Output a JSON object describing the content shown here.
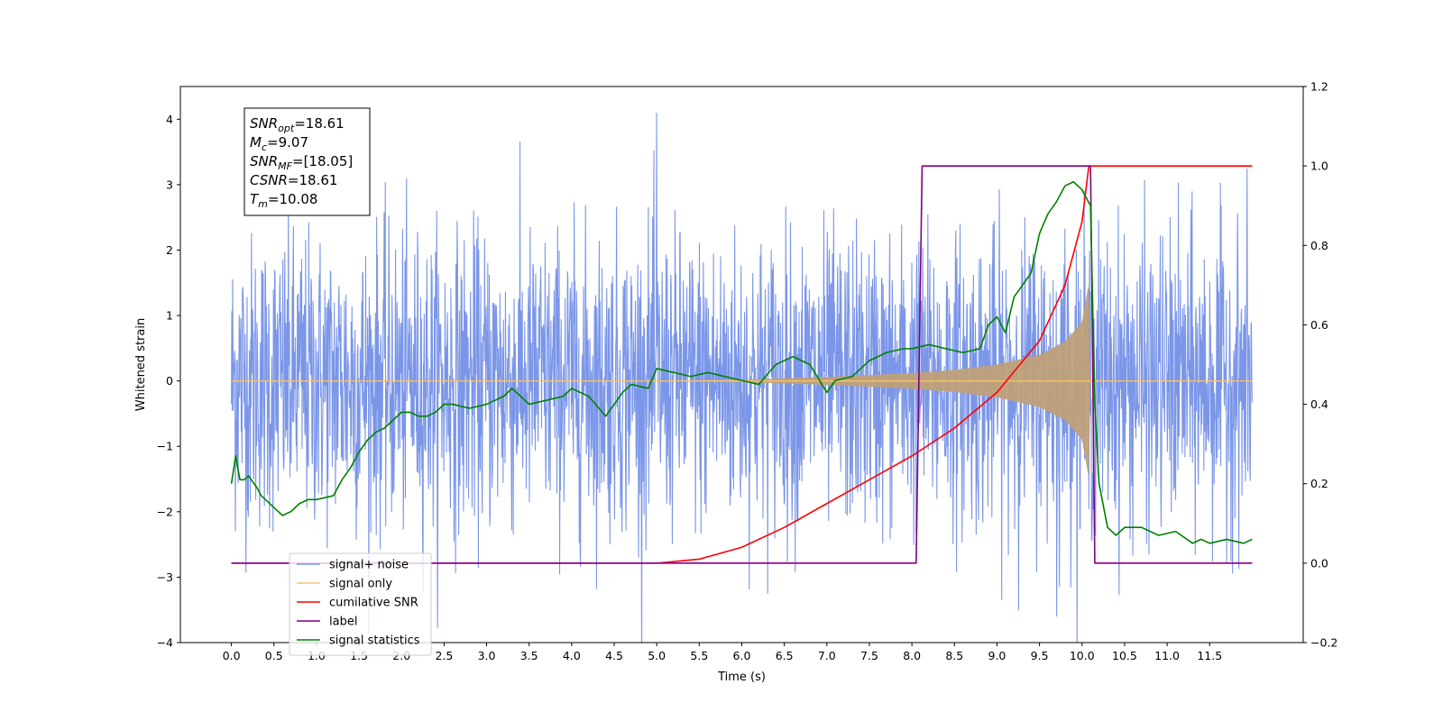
{
  "chart_data": {
    "type": "line",
    "xlabel": "Time (s)",
    "ylabel_left": "Whitened strain",
    "ylabel_right": "",
    "xlim": [
      -0.6,
      12.6
    ],
    "ylim_left": [
      -4,
      4.5
    ],
    "ylim_right": [
      -0.2,
      1.2
    ],
    "x_ticks": [
      0.0,
      0.5,
      1.0,
      1.5,
      2.0,
      2.5,
      3.0,
      3.5,
      4.0,
      4.5,
      5.0,
      5.5,
      6.0,
      6.5,
      7.0,
      7.5,
      8.0,
      8.5,
      9.0,
      9.5,
      10.0,
      10.5,
      11.0,
      11.5
    ],
    "x_tick_labels": [
      "0.0",
      "0.5",
      "1.0",
      "1.5",
      "2.0",
      "2.5",
      "3.0",
      "3.5",
      "4.0",
      "4.5",
      "5.0",
      "5.5",
      "6.0",
      "6.5",
      "7.0",
      "7.5",
      "8.0",
      "8.5",
      "9.0",
      "9.5",
      "10.0",
      "10.5",
      "11.0",
      "11.5"
    ],
    "y_ticks_left": [
      -4,
      -3,
      -2,
      -1,
      0,
      1,
      2,
      3,
      4
    ],
    "y_tick_labels_left": [
      "−4",
      "−3",
      "−2",
      "−1",
      "0",
      "1",
      "2",
      "3",
      "4"
    ],
    "y_ticks_right": [
      -0.2,
      0.0,
      0.2,
      0.4,
      0.6,
      0.8,
      1.0,
      1.2
    ],
    "y_tick_labels_right": [
      "−0.2",
      "0.0",
      "0.2",
      "0.4",
      "0.6",
      "0.8",
      "1.0",
      "1.2"
    ],
    "grid": false,
    "legend_position": "lower-left",
    "info_box": {
      "position": "top-left",
      "lines": [
        {
          "base": "SNR",
          "sub": "opt",
          "value": "=18.61"
        },
        {
          "base": "M",
          "sub": "c",
          "value": "=9.07"
        },
        {
          "base": "SNR",
          "sub": "MF",
          "value": "=[18.05]"
        },
        {
          "base": "CSNR",
          "sub": "",
          "value": "=18.61"
        },
        {
          "base": "T",
          "sub": "m",
          "value": "=10.08"
        }
      ]
    },
    "series": [
      {
        "name": "signal+ noise",
        "axis": "left",
        "color": "#7b96e8",
        "kind": "noise",
        "t_start": 0.0,
        "t_end": 12.0,
        "typical_range": [
          -1.8,
          1.8
        ],
        "peak_max": 4.1,
        "peak_min": -3.6
      },
      {
        "name": "signal only",
        "axis": "left",
        "color": "#f5c26b",
        "fill_color": "#bfa07a",
        "kind": "chirp",
        "t_start": 0.0,
        "t_merger": 10.08,
        "t_end": 12.0,
        "envelope_t": [
          0.0,
          6.0,
          7.0,
          8.0,
          8.5,
          9.0,
          9.5,
          9.8,
          10.0,
          10.08,
          10.1
        ],
        "envelope_amp": [
          0.0,
          0.02,
          0.06,
          0.12,
          0.17,
          0.25,
          0.4,
          0.6,
          0.9,
          1.5,
          0.0
        ]
      },
      {
        "name": "cumilative SNR",
        "axis": "right",
        "color": "#ff0000",
        "x": [
          0.0,
          5.0,
          5.5,
          6.0,
          6.5,
          7.0,
          7.5,
          8.0,
          8.5,
          9.0,
          9.5,
          9.8,
          10.0,
          10.08,
          10.1,
          12.0
        ],
        "y": [
          0.0,
          0.0,
          0.01,
          0.04,
          0.09,
          0.15,
          0.21,
          0.27,
          0.34,
          0.43,
          0.56,
          0.7,
          0.86,
          1.0,
          1.0,
          1.0
        ]
      },
      {
        "name": "label",
        "axis": "right",
        "color": "#800080",
        "x": [
          0.0,
          8.05,
          8.12,
          10.1,
          10.15,
          12.0
        ],
        "y": [
          0.0,
          0.0,
          1.0,
          1.0,
          0.0,
          0.0
        ]
      },
      {
        "name": "signal statistics",
        "axis": "right",
        "color": "#008000",
        "x": [
          0.0,
          0.05,
          0.1,
          0.15,
          0.2,
          0.3,
          0.35,
          0.4,
          0.5,
          0.6,
          0.7,
          0.8,
          0.9,
          1.0,
          1.2,
          1.3,
          1.4,
          1.5,
          1.6,
          1.7,
          1.8,
          1.9,
          2.0,
          2.1,
          2.2,
          2.3,
          2.4,
          2.5,
          2.6,
          2.8,
          3.0,
          3.2,
          3.3,
          3.5,
          3.7,
          3.9,
          4.0,
          4.2,
          4.4,
          4.6,
          4.7,
          4.9,
          5.0,
          5.2,
          5.4,
          5.6,
          5.8,
          6.0,
          6.2,
          6.4,
          6.6,
          6.8,
          7.0,
          7.1,
          7.3,
          7.5,
          7.7,
          7.9,
          8.0,
          8.2,
          8.4,
          8.6,
          8.8,
          8.9,
          9.0,
          9.1,
          9.2,
          9.3,
          9.4,
          9.5,
          9.6,
          9.7,
          9.8,
          9.9,
          10.0,
          10.1,
          10.15,
          10.2,
          10.3,
          10.4,
          10.5,
          10.7,
          10.9,
          11.1,
          11.3,
          11.4,
          11.5,
          11.7,
          11.9,
          12.0
        ],
        "y": [
          0.2,
          0.27,
          0.21,
          0.21,
          0.22,
          0.19,
          0.17,
          0.16,
          0.14,
          0.12,
          0.13,
          0.15,
          0.16,
          0.16,
          0.17,
          0.21,
          0.24,
          0.28,
          0.31,
          0.33,
          0.34,
          0.36,
          0.38,
          0.38,
          0.37,
          0.37,
          0.38,
          0.4,
          0.4,
          0.39,
          0.4,
          0.42,
          0.44,
          0.4,
          0.41,
          0.42,
          0.44,
          0.42,
          0.37,
          0.43,
          0.45,
          0.44,
          0.49,
          0.48,
          0.47,
          0.48,
          0.47,
          0.46,
          0.45,
          0.5,
          0.52,
          0.5,
          0.43,
          0.46,
          0.47,
          0.51,
          0.53,
          0.54,
          0.54,
          0.55,
          0.54,
          0.53,
          0.54,
          0.6,
          0.62,
          0.58,
          0.67,
          0.7,
          0.73,
          0.83,
          0.88,
          0.91,
          0.95,
          0.96,
          0.94,
          0.9,
          0.4,
          0.2,
          0.09,
          0.07,
          0.09,
          0.09,
          0.07,
          0.08,
          0.05,
          0.06,
          0.05,
          0.06,
          0.05,
          0.06
        ]
      }
    ],
    "legend": [
      {
        "label": "signal+ noise",
        "color": "#7b96e8"
      },
      {
        "label": "signal only",
        "color": "#f5c26b"
      },
      {
        "label": "cumilative SNR",
        "color": "#ff0000"
      },
      {
        "label": "label",
        "color": "#800080"
      },
      {
        "label": "signal statistics",
        "color": "#008000"
      }
    ]
  }
}
